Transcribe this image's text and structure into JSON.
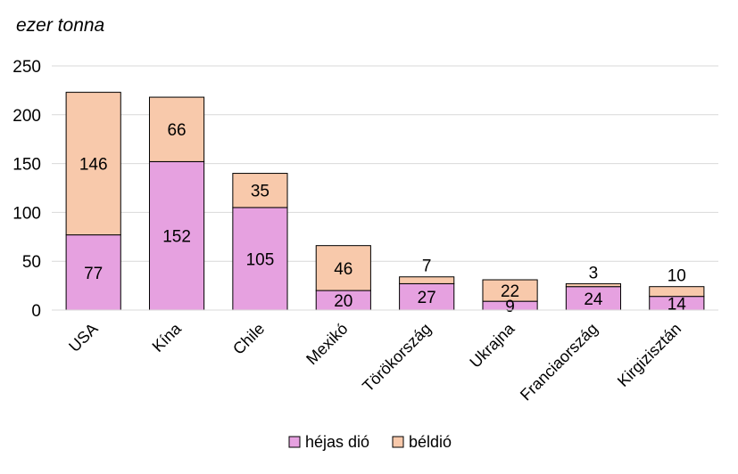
{
  "chart_data": {
    "type": "bar",
    "stacked": true,
    "ylabel": "ezer tonna",
    "ylim": [
      0,
      250
    ],
    "yticks": [
      0,
      50,
      100,
      150,
      200,
      250
    ],
    "grid": true,
    "legend_position": "bottom",
    "categories": [
      "USA",
      "Kína",
      "Chile",
      "Mexikó",
      "Törökország",
      "Ukrajna",
      "Franciaország",
      "Kirgizisztán"
    ],
    "series": [
      {
        "name": "héjas dió",
        "color": "#e6a1e0",
        "values": [
          77,
          152,
          105,
          20,
          27,
          9,
          24,
          14
        ]
      },
      {
        "name": "béldió",
        "color": "#f8c9ab",
        "values": [
          146,
          66,
          35,
          46,
          7,
          22,
          3,
          10
        ]
      }
    ]
  }
}
